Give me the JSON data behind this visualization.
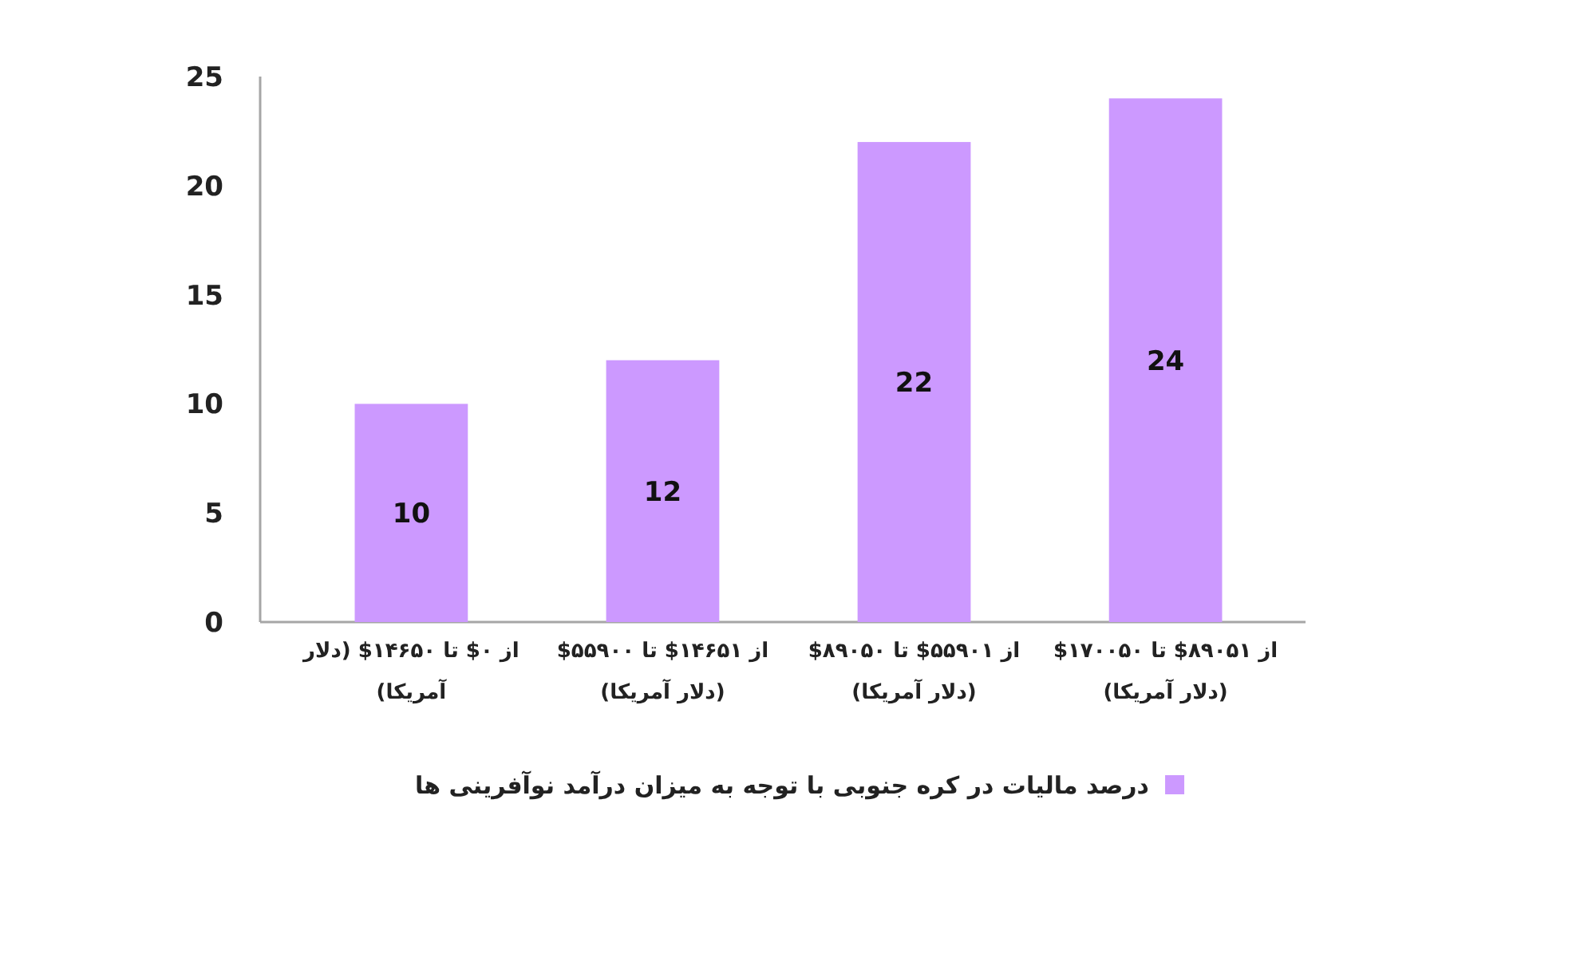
{
  "chart_data": {
    "type": "bar",
    "categories": [
      "از ۰$ تا ۱۴۶۵۰$ (دلار آمریکا)",
      "از ۱۴۶۵۱$ تا ۵۵۹۰۰$ (دلار آمریکا)",
      "از ۵۵۹۰۱$ تا ۸۹۰۵۰$ (دلار آمریکا)",
      "از ۸۹۰۵۱$ تا ۱۷۰۰۵۰$ (دلار آمریکا)"
    ],
    "series": [
      {
        "name": "درصد مالیات در کره جنوبی با توجه به میزان درآمد نوآفرینی ها",
        "color": "#cc99ff",
        "values": [
          10,
          12,
          22,
          24
        ]
      }
    ],
    "ylim": [
      0,
      25
    ],
    "yticks": [
      0,
      5,
      10,
      15,
      20,
      25
    ],
    "data_labels": true,
    "legend": "bottom"
  }
}
